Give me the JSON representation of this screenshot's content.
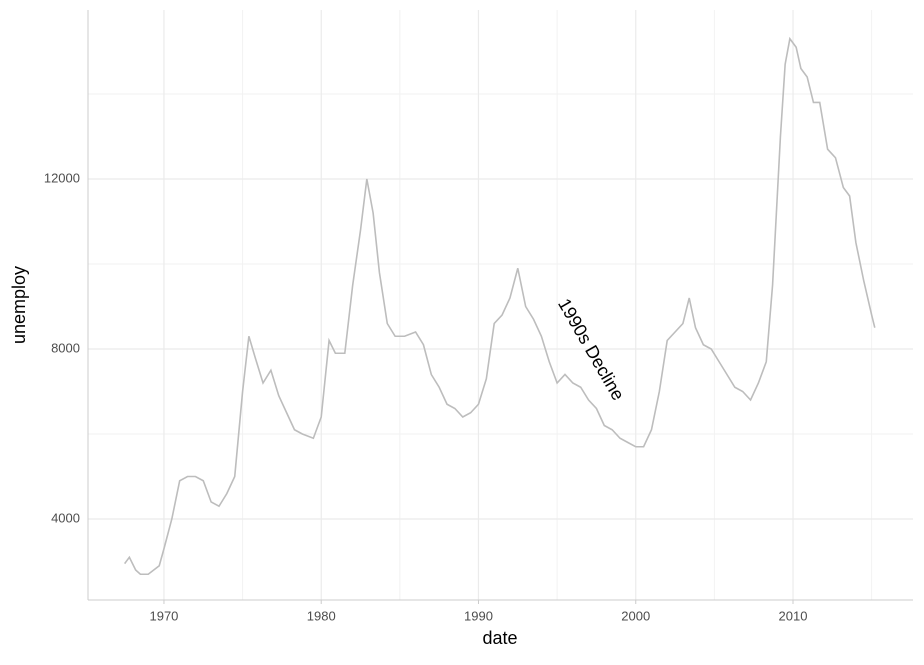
{
  "chart_data": {
    "type": "line",
    "x_label": "date",
    "y_label": "unemploy",
    "x": [
      1967.5,
      1967.8,
      1968.2,
      1968.5,
      1969.0,
      1969.7,
      1970.0,
      1970.5,
      1971.0,
      1971.5,
      1972.0,
      1972.5,
      1973.0,
      1973.5,
      1974.0,
      1974.5,
      1975.0,
      1975.4,
      1975.8,
      1976.3,
      1976.8,
      1977.3,
      1977.8,
      1978.3,
      1978.8,
      1979.5,
      1980.0,
      1980.5,
      1980.9,
      1981.5,
      1982.0,
      1982.5,
      1982.9,
      1983.3,
      1983.7,
      1984.2,
      1984.7,
      1985.3,
      1986.0,
      1986.5,
      1987.0,
      1987.5,
      1988.0,
      1988.5,
      1989.0,
      1989.5,
      1990.0,
      1990.5,
      1991.0,
      1991.5,
      1992.0,
      1992.5,
      1993.0,
      1993.5,
      1994.0,
      1994.5,
      1995.0,
      1995.5,
      1996.0,
      1996.5,
      1997.0,
      1997.5,
      1998.0,
      1998.5,
      1999.0,
      1999.5,
      2000.0,
      2000.5,
      2001.0,
      2001.5,
      2002.0,
      2002.5,
      2003.0,
      2003.4,
      2003.8,
      2004.3,
      2004.8,
      2005.3,
      2005.8,
      2006.3,
      2006.8,
      2007.3,
      2007.8,
      2008.3,
      2008.7,
      2009.2,
      2009.5,
      2009.8,
      2010.2,
      2010.5,
      2010.9,
      2011.3,
      2011.7,
      2012.2,
      2012.7,
      2013.2,
      2013.6,
      2014.0,
      2014.5,
      2015.0,
      2015.2
    ],
    "series": [
      {
        "color": "#bdbdbd",
        "values": [
          2950,
          3100,
          2800,
          2700,
          2700,
          2900,
          3300,
          4000,
          4900,
          5000,
          5000,
          4900,
          4400,
          4300,
          4600,
          5000,
          7000,
          8300,
          7800,
          7200,
          7500,
          6900,
          6500,
          6100,
          6000,
          5900,
          6400,
          8200,
          7900,
          7900,
          9500,
          10800,
          12000,
          11200,
          9800,
          8600,
          8300,
          8300,
          8400,
          8100,
          7400,
          7100,
          6700,
          6600,
          6400,
          6500,
          6700,
          7300,
          8600,
          8800,
          9200,
          9900,
          9000,
          8700,
          8300,
          7700,
          7200,
          7400,
          7200,
          7100,
          6800,
          6600,
          6200,
          6100,
          5900,
          5800,
          5700,
          5700,
          6100,
          7000,
          8200,
          8400,
          8600,
          9200,
          8500,
          8100,
          8000,
          7700,
          7400,
          7100,
          7000,
          6800,
          7200,
          7700,
          9500,
          13000,
          14700,
          15300,
          15100,
          14600,
          14400,
          13800,
          13800,
          12700,
          12500,
          11800,
          11600,
          10500,
          9600,
          8800,
          8500
        ]
      }
    ],
    "xlim": [
      1965.17,
      2017.63
    ],
    "xticks": [
      1970,
      1980,
      1990,
      2000,
      2010
    ],
    "x_minor_ticks": [
      1975,
      1985,
      1995,
      2005,
      2015
    ],
    "ylim": [
      2094,
      15976
    ],
    "yticks": [
      4000,
      8000,
      12000
    ],
    "y_minor_ticks": [
      6000,
      10000,
      14000
    ],
    "grid": true,
    "annotations": [
      {
        "text": "1990s Decline",
        "x": 1997.1,
        "y": 7976,
        "angle": -60
      }
    ]
  }
}
